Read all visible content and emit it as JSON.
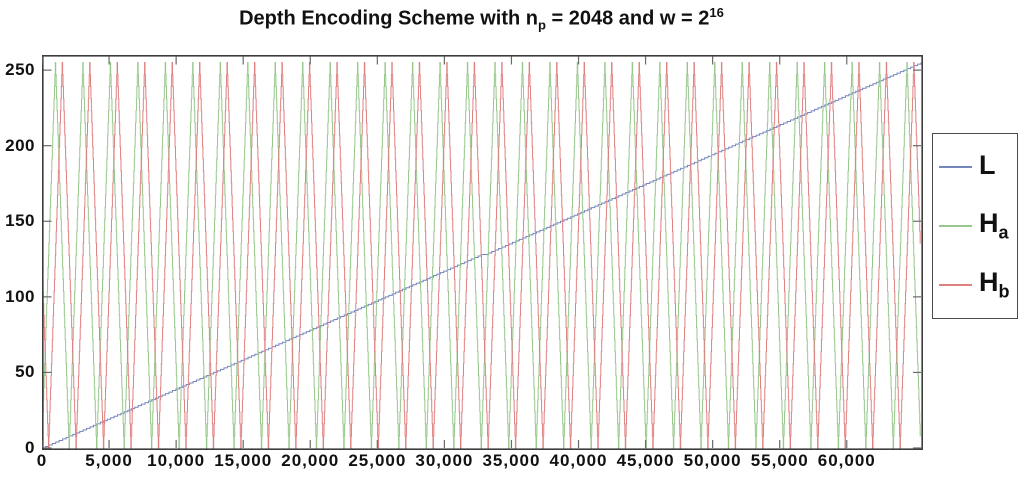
{
  "figure": {
    "title": {
      "part1": "Depth Encoding Scheme with n",
      "sub": "p",
      "part2": " = 2048 and w = 2",
      "sup": "16"
    }
  },
  "chart_data": {
    "type": "line",
    "title": "Depth Encoding Scheme with n_p = 2048 and w = 2^16",
    "xlabel": "",
    "ylabel": "",
    "xlim": [
      0,
      65535
    ],
    "ylim": [
      0,
      260
    ],
    "grid": false,
    "background": "#ffffff",
    "axis_border_color": "#3d3d3d",
    "tick_color": "#6a6a6a",
    "xticks": {
      "values": [
        0,
        5000,
        10000,
        15000,
        20000,
        25000,
        30000,
        35000,
        40000,
        45000,
        50000,
        55000,
        60000
      ],
      "labels": [
        "0",
        "5,000",
        "10,000",
        "15,000",
        "20,000",
        "25,000",
        "30,000",
        "35,000",
        "40,000",
        "45,000",
        "50,000",
        "55,000",
        "60,000"
      ]
    },
    "yticks": {
      "values": [
        0,
        50,
        100,
        150,
        200,
        250
      ],
      "labels": [
        "0",
        "50",
        "100",
        "150",
        "200",
        "250"
      ]
    },
    "legend": {
      "position": "outside-right",
      "entries": [
        {
          "base": "L",
          "sub": "",
          "color": "#7486bd"
        },
        {
          "base": "H",
          "sub": "a",
          "color": "#97c78b"
        },
        {
          "base": "H",
          "sub": "b",
          "color": "#df8181"
        }
      ]
    },
    "series": [
      {
        "name": "L",
        "color": "#7486bd",
        "kind": "linear-ramp",
        "x_start": 0,
        "x_end": 65535,
        "y_start": 0,
        "y_end": 255,
        "quantize_levels": 256,
        "description": "Linear luma ramp: L rises from 0 at d=0 to 255 at d=65535 (8-bit quantized staircase)"
      },
      {
        "name": "H_a",
        "color": "#97c78b",
        "kind": "triangle",
        "period": 2048,
        "peak_x": 1024,
        "y_min": 0,
        "y_max": 255,
        "description": "Triangle wave: 0 at d=0, first peak 255 at d=1024, zeros at every multiple of 2048; 32 peaks across the axis"
      },
      {
        "name": "H_b",
        "color": "#df8181",
        "kind": "triangle",
        "period": 2048,
        "peak_x": 1536,
        "y_min": 0,
        "y_max": 255,
        "description": "Triangle wave shifted +512 from H_a: value 128 at d=0, zero at d=512, first peak 255 at d=1536"
      }
    ]
  }
}
